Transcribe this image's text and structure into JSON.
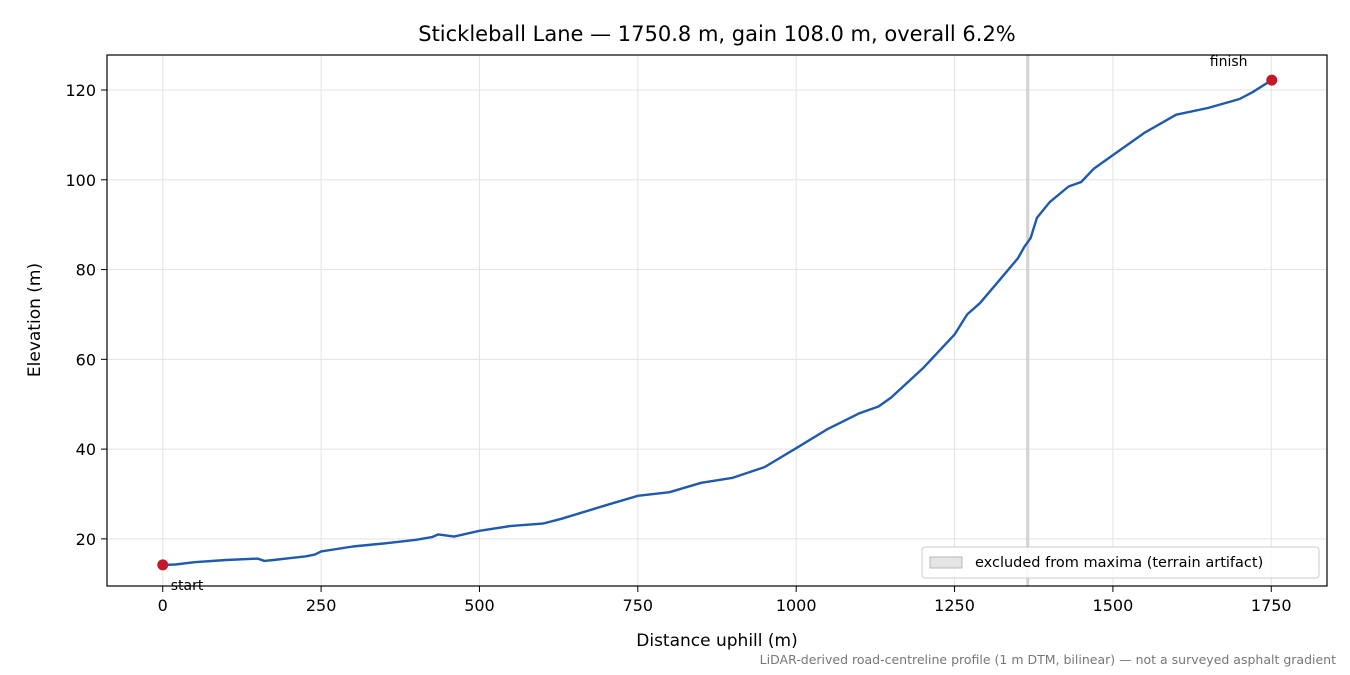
{
  "chart_data": {
    "type": "line",
    "title": "Stickleball Lane — 1750.8 m, gain 108.0 m, overall 6.2%",
    "xlabel": "Distance uphill (m)",
    "ylabel": "Elevation (m)",
    "xlim": [
      -88,
      1838
    ],
    "ylim": [
      9.5,
      127.8
    ],
    "x_ticks": [
      0,
      250,
      500,
      750,
      1000,
      1250,
      1500,
      1750
    ],
    "y_ticks": [
      20,
      40,
      60,
      80,
      100,
      120
    ],
    "grid": true,
    "legend_placement": "lower-right",
    "colors": {
      "line": "#1f5aad",
      "marker": "#c4172a",
      "band": "#cccccc",
      "footnote": "#777777"
    },
    "series": [
      {
        "x": [
          0,
          20,
          50,
          100,
          150,
          160,
          175,
          200,
          225,
          240,
          250,
          300,
          350,
          400,
          425,
          435,
          460,
          500,
          550,
          600,
          630,
          700,
          750,
          800,
          850,
          900,
          950,
          1000,
          1050,
          1100,
          1130,
          1150,
          1200,
          1250,
          1270,
          1290,
          1320,
          1350,
          1360,
          1370,
          1380,
          1400,
          1430,
          1450,
          1470,
          1500,
          1550,
          1600,
          1650,
          1700,
          1720,
          1750.8
        ],
        "y": [
          14.2,
          14.3,
          14.8,
          15.3,
          15.6,
          15.1,
          15.3,
          15.7,
          16.1,
          16.5,
          17.2,
          18.3,
          19.0,
          19.8,
          20.4,
          21.0,
          20.5,
          21.8,
          22.9,
          23.4,
          24.5,
          27.5,
          29.6,
          30.4,
          32.5,
          33.6,
          36.0,
          40.2,
          44.5,
          48.0,
          49.5,
          51.5,
          58.0,
          65.5,
          70.0,
          72.5,
          77.5,
          82.5,
          85.0,
          87.0,
          91.5,
          95.0,
          98.5,
          99.5,
          102.5,
          105.5,
          110.5,
          114.5,
          116.0,
          118.0,
          119.5,
          122.2
        ]
      }
    ],
    "points": [
      {
        "label": "start",
        "x": 0,
        "y": 14.2
      },
      {
        "label": "finish",
        "x": 1750.8,
        "y": 122.2
      }
    ],
    "excluded_band": {
      "x0": 1363,
      "x1": 1368
    },
    "legend": [
      "excluded from maxima (terrain artifact)"
    ],
    "footnote": "LiDAR-derived road-centreline profile (1 m DTM, bilinear) — not a surveyed asphalt gradient"
  }
}
